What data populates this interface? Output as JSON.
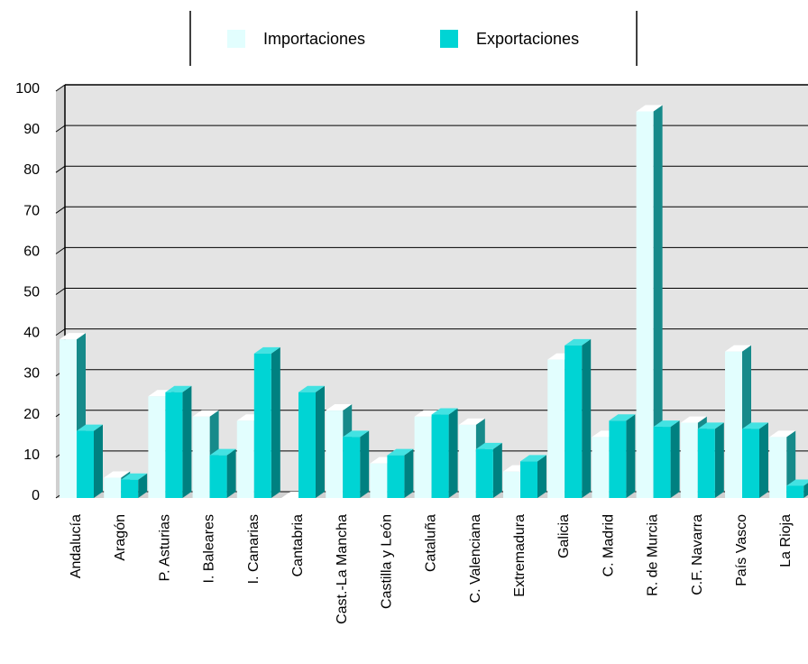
{
  "chart_data": {
    "type": "bar",
    "style": "3d-clustered",
    "categories": [
      "Andalucía",
      "Aragón",
      "P. Asturias",
      "I. Baleares",
      "I. Canarias",
      "Cantabria",
      "Cast.-La Mancha",
      "Castilla y León",
      "Cataluña",
      "C. Valenciana",
      "Extremadura",
      "Galicia",
      "C. Madrid",
      "R. de Murcia",
      "C.F. Navarra",
      "País Vasco",
      "La Rioja"
    ],
    "series": [
      {
        "name": "Importaciones",
        "values": [
          39,
          5,
          25,
          20,
          19,
          0,
          21.5,
          8.5,
          20,
          18,
          6.5,
          34,
          15,
          95,
          18.5,
          36,
          15
        ]
      },
      {
        "name": "Exportaciones",
        "values": [
          16.5,
          4.5,
          26,
          10.5,
          35.5,
          26,
          15,
          10.5,
          20.5,
          12,
          9,
          37.5,
          19,
          17.5,
          17,
          17,
          3
        ]
      }
    ],
    "yticks": [
      0,
      10,
      20,
      30,
      40,
      50,
      60,
      70,
      80,
      90,
      100
    ],
    "ylim": [
      0,
      100
    ],
    "grid": true,
    "legend_position": "top-center",
    "colors": {
      "importaciones_front": "#E2FEFE",
      "importaciones_top": "#ffffff",
      "importaciones_side": "#168A8A",
      "exportaciones_front": "#00D4D4",
      "exportaciones_top": "#43E2E2",
      "exportaciones_side": "#008080",
      "wall": "#E4E4E4",
      "wall_top": "#D0D0D0",
      "grid": "#000000"
    }
  }
}
